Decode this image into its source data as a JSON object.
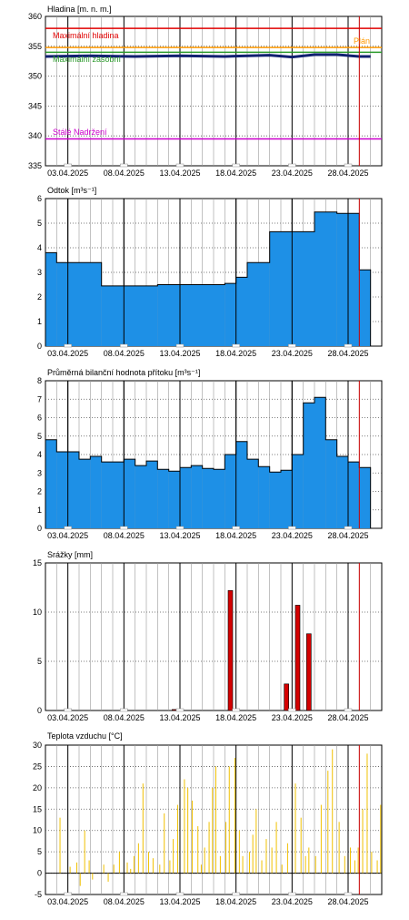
{
  "colors": {
    "bar_blue": "#1e90e6",
    "bar_red": "#d40000",
    "temp_yellow": "#f0c000",
    "max_line": "#e00000",
    "plan_line": "#ff9900",
    "storage_line": "#2a9a2a",
    "stale_line": "#cc00cc",
    "level_line": "#102070",
    "now_line": "#cc0000",
    "grid_dark": "#000000",
    "grid_light": "#999999"
  },
  "x_axis": {
    "start": "2025-04-01",
    "end": "2025-05-01",
    "tick_labels": [
      "03.04.2025",
      "08.04.2025",
      "13.04.2025",
      "18.04.2025",
      "23.04.2025",
      "28.04.2025"
    ],
    "now_marker": "2025-04-29"
  },
  "chart_data": [
    {
      "type": "line",
      "title": "Hladina [m. n. m.]",
      "ylim": [
        335,
        360
      ],
      "yticks": [
        335,
        340,
        345,
        350,
        355,
        360
      ],
      "reference_lines": [
        {
          "name": "Maximální hladina",
          "y": 358,
          "color_key": "max_line"
        },
        {
          "name": "Plán",
          "y": 354.8,
          "color_key": "plan_line"
        },
        {
          "name": "Maximální zásobní",
          "y": 354,
          "color_key": "storage_line"
        },
        {
          "name": "Stálé Nadržení",
          "y": 339.5,
          "color_key": "stale_line"
        }
      ],
      "series": [
        {
          "x": [
            "2025-04-01",
            "2025-04-05",
            "2025-04-09",
            "2025-04-13",
            "2025-04-17",
            "2025-04-21",
            "2025-04-23",
            "2025-04-25",
            "2025-04-27",
            "2025-04-29",
            "2025-04-30"
          ],
          "values": [
            353.3,
            353.4,
            353.3,
            353.4,
            353.3,
            353.5,
            353.2,
            353.6,
            353.6,
            353.3,
            353.3
          ]
        }
      ]
    },
    {
      "type": "bar",
      "title": "Odtok [m³s⁻¹]",
      "ylim": [
        0,
        6
      ],
      "yticks": [
        0,
        1,
        2,
        3,
        4,
        5,
        6
      ],
      "steps": [
        {
          "from": "2025-04-01",
          "to": "2025-04-02",
          "value": 3.8
        },
        {
          "from": "2025-04-02",
          "to": "2025-04-06",
          "value": 3.4
        },
        {
          "from": "2025-04-06",
          "to": "2025-04-11",
          "value": 2.45
        },
        {
          "from": "2025-04-11",
          "to": "2025-04-17",
          "value": 2.5
        },
        {
          "from": "2025-04-17",
          "to": "2025-04-18",
          "value": 2.55
        },
        {
          "from": "2025-04-18",
          "to": "2025-04-19",
          "value": 2.8
        },
        {
          "from": "2025-04-19",
          "to": "2025-04-21",
          "value": 3.4
        },
        {
          "from": "2025-04-21",
          "to": "2025-04-25",
          "value": 4.65
        },
        {
          "from": "2025-04-25",
          "to": "2025-04-27",
          "value": 5.45
        },
        {
          "from": "2025-04-27",
          "to": "2025-04-29",
          "value": 5.4
        },
        {
          "from": "2025-04-29",
          "to": "2025-04-30",
          "value": 3.1
        }
      ]
    },
    {
      "type": "bar",
      "title": "Průměrná bilanční hodnota přítoku  [m³s⁻¹]",
      "ylim": [
        0,
        8
      ],
      "yticks": [
        0,
        1,
        2,
        3,
        4,
        5,
        6,
        7,
        8
      ],
      "steps": [
        {
          "from": "2025-04-01",
          "to": "2025-04-02",
          "value": 4.8
        },
        {
          "from": "2025-04-02",
          "to": "2025-04-04",
          "value": 4.15
        },
        {
          "from": "2025-04-04",
          "to": "2025-04-05",
          "value": 3.75
        },
        {
          "from": "2025-04-05",
          "to": "2025-04-06",
          "value": 3.9
        },
        {
          "from": "2025-04-06",
          "to": "2025-04-08",
          "value": 3.6
        },
        {
          "from": "2025-04-08",
          "to": "2025-04-09",
          "value": 3.75
        },
        {
          "from": "2025-04-09",
          "to": "2025-04-10",
          "value": 3.4
        },
        {
          "from": "2025-04-10",
          "to": "2025-04-11",
          "value": 3.65
        },
        {
          "from": "2025-04-11",
          "to": "2025-04-12",
          "value": 3.2
        },
        {
          "from": "2025-04-12",
          "to": "2025-04-13",
          "value": 3.1
        },
        {
          "from": "2025-04-13",
          "to": "2025-04-14",
          "value": 3.3
        },
        {
          "from": "2025-04-14",
          "to": "2025-04-15",
          "value": 3.4
        },
        {
          "from": "2025-04-15",
          "to": "2025-04-16",
          "value": 3.25
        },
        {
          "from": "2025-04-16",
          "to": "2025-04-17",
          "value": 3.2
        },
        {
          "from": "2025-04-17",
          "to": "2025-04-18",
          "value": 4.0
        },
        {
          "from": "2025-04-18",
          "to": "2025-04-19",
          "value": 4.7
        },
        {
          "from": "2025-04-19",
          "to": "2025-04-20",
          "value": 3.75
        },
        {
          "from": "2025-04-20",
          "to": "2025-04-21",
          "value": 3.35
        },
        {
          "from": "2025-04-21",
          "to": "2025-04-22",
          "value": 3.05
        },
        {
          "from": "2025-04-22",
          "to": "2025-04-23",
          "value": 3.15
        },
        {
          "from": "2025-04-23",
          "to": "2025-04-24",
          "value": 4.0
        },
        {
          "from": "2025-04-24",
          "to": "2025-04-25",
          "value": 6.8
        },
        {
          "from": "2025-04-25",
          "to": "2025-04-26",
          "value": 7.1
        },
        {
          "from": "2025-04-26",
          "to": "2025-04-27",
          "value": 4.8
        },
        {
          "from": "2025-04-27",
          "to": "2025-04-28",
          "value": 3.9
        },
        {
          "from": "2025-04-28",
          "to": "2025-04-29",
          "value": 3.6
        },
        {
          "from": "2025-04-29",
          "to": "2025-04-30",
          "value": 3.3
        }
      ]
    },
    {
      "type": "bar",
      "title": "Srážky [mm]",
      "ylim": [
        0,
        15
      ],
      "yticks": [
        0,
        5,
        10,
        15
      ],
      "bars": [
        {
          "x": "2025-04-12",
          "value": 0.1
        },
        {
          "x": "2025-04-17",
          "value": 12.2
        },
        {
          "x": "2025-04-22",
          "value": 2.7
        },
        {
          "x": "2025-04-23",
          "value": 10.7
        },
        {
          "x": "2025-04-24",
          "value": 7.8
        }
      ]
    },
    {
      "type": "bar",
      "title": "Teplota vzduchu [°C]",
      "ylim": [
        -5,
        30
      ],
      "yticks": [
        -5,
        0,
        5,
        10,
        15,
        20,
        25,
        30
      ],
      "series": [
        {
          "x": [
            1.3,
            2.2,
            2.8,
            3.1,
            3.5,
            3.9,
            4.2,
            5.2,
            5.6,
            6.1,
            6.6,
            7.3,
            7.6,
            7.9,
            8.3,
            8.7,
            9.2,
            9.6,
            10.2,
            10.6,
            11.1,
            11.4,
            11.8,
            12.4,
            12.7,
            13.1,
            13.6,
            13.9,
            14.2,
            14.6,
            14.9,
            15.2,
            15.6,
            16.1,
            16.4,
            16.9,
            17.3,
            17.6,
            18.2,
            18.5,
            18.8,
            19.3,
            19.7,
            20.2,
            20.6,
            21.1,
            21.6,
            22.3,
            22.8,
            23.2,
            23.5,
            24.1,
            24.6,
            25.2,
            25.6,
            26.2,
            26.7,
            27.2,
            27.6,
            27.9,
            28.3,
            28.7,
            29.1,
            29.6,
            29.9
          ],
          "values": [
            13,
            1.5,
            2.5,
            -3,
            10,
            3,
            -1.5,
            2,
            -2,
            2,
            5,
            2.5,
            1,
            4,
            7,
            21,
            5,
            3.5,
            2,
            14,
            3,
            8,
            16,
            22,
            20,
            17,
            11,
            2,
            6,
            12,
            20,
            25,
            4,
            12,
            25,
            27,
            10,
            4,
            5,
            9,
            15,
            3,
            8,
            6,
            12,
            2,
            7,
            21,
            13,
            4,
            6,
            4,
            16,
            24,
            29,
            12,
            4,
            6,
            3,
            6,
            15,
            28,
            5,
            3,
            16
          ]
        }
      ]
    }
  ]
}
